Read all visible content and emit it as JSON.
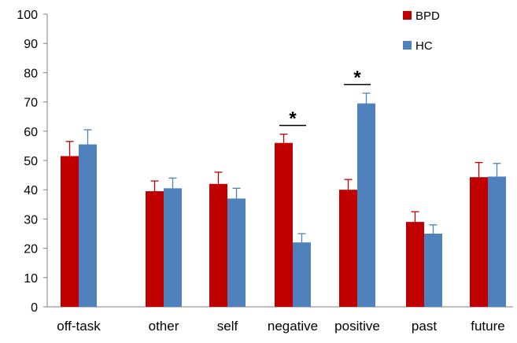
{
  "chart_data": {
    "type": "bar",
    "categories": [
      "off-task",
      "other",
      "self",
      "negative",
      "positive",
      "past",
      "future"
    ],
    "series": [
      {
        "name": "BPD",
        "color": "#c00000",
        "values": [
          51.5,
          39.5,
          42,
          56,
          40,
          29,
          44.3
        ],
        "errors": [
          5,
          3.5,
          4,
          3,
          3.5,
          3.5,
          5
        ]
      },
      {
        "name": "HC",
        "color": "#4f81bd",
        "values": [
          55.5,
          40.5,
          37,
          22,
          69.5,
          25,
          44.5
        ],
        "errors": [
          5,
          3.5,
          3.5,
          3,
          3.5,
          3,
          4.5
        ]
      }
    ],
    "yticks": [
      "0",
      "10",
      "20",
      "30",
      "40",
      "50",
      "60",
      "70",
      "80",
      "90",
      "100"
    ],
    "ylim": [
      0,
      100
    ],
    "grid": false,
    "legend_position": "top-right",
    "significance": [
      {
        "category": "negative",
        "label": "*"
      },
      {
        "category": "positive",
        "label": "*"
      }
    ]
  }
}
